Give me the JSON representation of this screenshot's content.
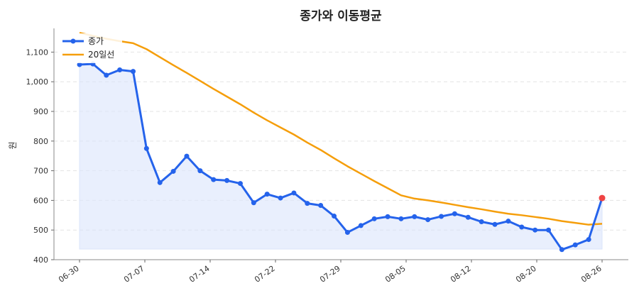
{
  "chart_data": {
    "type": "line",
    "title": "종가와 이동평균",
    "xlabel": "",
    "ylabel": "원",
    "ylim": [
      400,
      1180
    ],
    "yticks": [
      400,
      500,
      600,
      700,
      800,
      900,
      1000,
      1100
    ],
    "ytick_labels": [
      "400",
      "500",
      "600",
      "700",
      "800",
      "900",
      "1,000",
      "1,100"
    ],
    "xticks": [
      "06-30",
      "07-07",
      "07-14",
      "07-22",
      "07-29",
      "08-05",
      "08-12",
      "08-20",
      "08-26"
    ],
    "grid": true,
    "legend_position": "top-left",
    "colors": {
      "close": "#2563eb",
      "ma20": "#f59e0b",
      "fill": "#dbe4fb",
      "last_point": "#ef4444"
    },
    "series": [
      {
        "name": "종가",
        "values": [
          1058,
          1060,
          1022,
          1040,
          1035,
          775,
          660,
          698,
          749,
          700,
          670,
          667,
          657,
          592,
          621,
          608,
          625,
          590,
          583,
          547,
          492,
          515,
          538,
          545,
          538,
          545,
          535,
          546,
          555,
          543,
          528,
          519,
          530,
          510,
          500,
          500,
          434,
          450,
          468,
          608
        ]
      },
      {
        "name": "20일선",
        "values": [
          1165,
          1155,
          1145,
          1137,
          1130,
          1110,
          1083,
          1056,
          1030,
          1003,
          976,
          950,
          924,
          896,
          870,
          846,
          822,
          795,
          770,
          742,
          715,
          690,
          665,
          641,
          617,
          606,
          600,
          593,
          585,
          577,
          570,
          562,
          555,
          550,
          544,
          538,
          530,
          524,
          518,
          521
        ]
      }
    ],
    "highlight_last": true
  }
}
